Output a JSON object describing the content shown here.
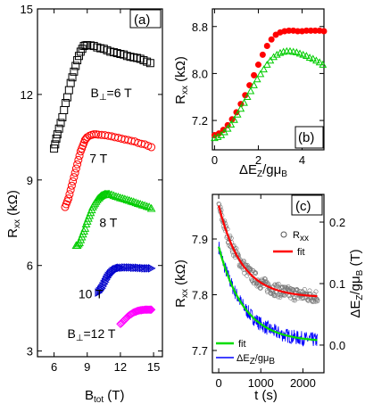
{
  "chart_data": [
    {
      "panel": "a",
      "type": "scatter",
      "panel_label": "(a)",
      "xlabel": "B",
      "xlabel_sub": "tot",
      "xlabel_unit": "(T)",
      "ylabel": "R",
      "ylabel_sub": "xx",
      "ylabel_unit": "(kΩ)",
      "xlim": [
        4.5,
        15.8
      ],
      "ylim": [
        2.8,
        15
      ],
      "xticks": [
        6,
        9,
        12,
        15
      ],
      "yticks": [
        3,
        6,
        9,
        12,
        15
      ],
      "xtick_labels": [
        "6",
        "9",
        "12",
        "15"
      ],
      "ytick_labels": [
        "3",
        "6",
        "9",
        "12",
        "15"
      ],
      "grid": false,
      "series": [
        {
          "name": "B⊥=6 T",
          "marker": "square",
          "color": "#000000",
          "label_main": "B",
          "label_sub": "⊥",
          "label_rest": "=6 T",
          "x": [
            6.0,
            6.1,
            6.2,
            6.3,
            6.45,
            6.6,
            6.75,
            6.9,
            7.05,
            7.2,
            7.35,
            7.5,
            7.65,
            7.8,
            7.95,
            8.1,
            8.25,
            8.4,
            8.55,
            8.7,
            8.85,
            9.0,
            9.3,
            9.6,
            9.9,
            10.2,
            10.5,
            10.8,
            11.1,
            11.4,
            11.7,
            12.0,
            12.3,
            12.6,
            12.9,
            13.2,
            13.5,
            13.8,
            14.1,
            14.4,
            14.7
          ],
          "y": [
            10.1,
            10.25,
            10.45,
            10.6,
            10.8,
            11.0,
            11.2,
            11.45,
            11.7,
            11.9,
            12.15,
            12.4,
            12.6,
            12.8,
            13.0,
            13.2,
            13.35,
            13.5,
            13.6,
            13.7,
            13.72,
            13.73,
            13.72,
            13.7,
            13.65,
            13.62,
            13.6,
            13.55,
            13.5,
            13.48,
            13.45,
            13.42,
            13.4,
            13.35,
            13.32,
            13.3,
            13.28,
            13.25,
            13.2,
            13.15,
            13.1
          ]
        },
        {
          "name": "7 T",
          "marker": "circle",
          "color": "#ff0000",
          "label_main": "7 T",
          "label_sub": "",
          "label_rest": "",
          "x": [
            7.0,
            7.1,
            7.2,
            7.3,
            7.4,
            7.5,
            7.6,
            7.7,
            7.8,
            7.9,
            8.0,
            8.1,
            8.2,
            8.3,
            8.4,
            8.5,
            8.6,
            8.7,
            8.8,
            8.9,
            9.0,
            9.2,
            9.4,
            9.6,
            9.8,
            10.0,
            10.3,
            10.6,
            10.9,
            11.2,
            11.5,
            11.8,
            12.1,
            12.4,
            12.7,
            13.0,
            13.3,
            13.6,
            13.9,
            14.2,
            14.5,
            14.8
          ],
          "y": [
            8.05,
            8.15,
            8.25,
            8.35,
            8.5,
            8.65,
            8.8,
            8.95,
            9.1,
            9.25,
            9.4,
            9.55,
            9.7,
            9.85,
            10.0,
            10.1,
            10.2,
            10.3,
            10.4,
            10.45,
            10.5,
            10.55,
            10.58,
            10.6,
            10.6,
            10.59,
            10.58,
            10.57,
            10.55,
            10.53,
            10.5,
            10.48,
            10.45,
            10.42,
            10.4,
            10.37,
            10.35,
            10.3,
            10.27,
            10.25,
            10.2,
            10.15
          ]
        },
        {
          "name": "8 T",
          "marker": "triangle-up",
          "color": "#00cc00",
          "label_main": "8 T",
          "label_sub": "",
          "label_rest": "",
          "x": [
            8.0,
            8.1,
            8.2,
            8.3,
            8.4,
            8.5,
            8.6,
            8.7,
            8.8,
            8.9,
            9.0,
            9.1,
            9.2,
            9.3,
            9.4,
            9.5,
            9.6,
            9.7,
            9.8,
            9.9,
            10.0,
            10.1,
            10.2,
            10.3,
            10.4,
            10.5,
            10.6,
            10.7,
            10.8,
            10.9,
            11.0,
            11.2,
            11.4,
            11.6,
            11.8,
            12.0,
            12.2,
            12.4,
            12.6,
            12.8,
            13.0,
            13.2,
            13.4,
            13.6,
            13.8,
            14.0,
            14.2,
            14.4,
            14.6,
            14.8
          ],
          "y": [
            6.7,
            6.7,
            6.75,
            6.8,
            6.9,
            7.0,
            7.1,
            7.2,
            7.3,
            7.45,
            7.55,
            7.65,
            7.75,
            7.85,
            7.95,
            8.05,
            8.12,
            8.18,
            8.24,
            8.3,
            8.35,
            8.38,
            8.42,
            8.45,
            8.47,
            8.48,
            8.5,
            8.5,
            8.5,
            8.5,
            8.5,
            8.48,
            8.45,
            8.42,
            8.4,
            8.37,
            8.35,
            8.33,
            8.3,
            8.28,
            8.25,
            8.23,
            8.2,
            8.17,
            8.15,
            8.12,
            8.1,
            8.07,
            8.05,
            8.0
          ]
        },
        {
          "name": "10 T",
          "marker": "triangle-right",
          "color": "#0000cc",
          "label_main": "10 T",
          "label_sub": "",
          "label_rest": "",
          "x": [
            10.0,
            10.1,
            10.2,
            10.3,
            10.4,
            10.5,
            10.6,
            10.7,
            10.8,
            10.9,
            11.0,
            11.1,
            11.2,
            11.3,
            11.4,
            11.5,
            11.6,
            11.7,
            11.8,
            11.9,
            12.0,
            12.2,
            12.4,
            12.6,
            12.8,
            13.0,
            13.2,
            13.4,
            13.6,
            13.8,
            14.0,
            14.2,
            14.4,
            14.6,
            14.8
          ],
          "y": [
            5.05,
            5.1,
            5.15,
            5.2,
            5.27,
            5.35,
            5.42,
            5.5,
            5.57,
            5.63,
            5.68,
            5.72,
            5.76,
            5.8,
            5.82,
            5.85,
            5.87,
            5.88,
            5.9,
            5.91,
            5.92,
            5.92,
            5.93,
            5.93,
            5.93,
            5.93,
            5.92,
            5.92,
            5.92,
            5.91,
            5.91,
            5.9,
            5.9,
            5.9,
            5.9
          ]
        },
        {
          "name": "B⊥=12 T",
          "marker": "diamond",
          "color": "#ff00ff",
          "label_main": "B",
          "label_sub": "⊥",
          "label_rest": "=12 T",
          "x": [
            12.0,
            12.1,
            12.2,
            12.3,
            12.4,
            12.5,
            12.6,
            12.7,
            12.8,
            12.9,
            13.0,
            13.1,
            13.2,
            13.3,
            13.4,
            13.5,
            13.6,
            13.7,
            13.8,
            13.9,
            14.0,
            14.1,
            14.2,
            14.3,
            14.4,
            14.5,
            14.6,
            14.7,
            14.8
          ],
          "y": [
            3.95,
            3.98,
            4.02,
            4.06,
            4.1,
            4.14,
            4.18,
            4.22,
            4.25,
            4.28,
            4.3,
            4.33,
            4.35,
            4.37,
            4.38,
            4.4,
            4.41,
            4.42,
            4.43,
            4.43,
            4.44,
            4.44,
            4.45,
            4.45,
            4.45,
            4.45,
            4.45,
            4.45,
            4.45
          ]
        }
      ]
    },
    {
      "panel": "b",
      "type": "scatter",
      "panel_label": "(b)",
      "xlabel": "ΔE",
      "xlabel_sub": "Z",
      "xlabel_rest": "/gμ",
      "xlabel_sub2": "B",
      "ylabel": "R",
      "ylabel_sub": "xx",
      "ylabel_unit": "(kΩ)",
      "xlim": [
        -0.1,
        5.0
      ],
      "ylim": [
        6.7,
        9.1
      ],
      "xticks": [
        0,
        2,
        4
      ],
      "yticks": [
        7.2,
        8.0,
        8.8
      ],
      "xtick_labels": [
        "0",
        "2",
        "4"
      ],
      "ytick_labels": [
        "7.2",
        "8.0",
        "8.8"
      ],
      "grid": false,
      "series": [
        {
          "marker": "circle-filled",
          "color": "#ff0000",
          "x": [
            0.0,
            0.2,
            0.4,
            0.6,
            0.8,
            1.0,
            1.2,
            1.4,
            1.6,
            1.8,
            2.0,
            2.2,
            2.4,
            2.6,
            2.8,
            3.0,
            3.2,
            3.4,
            3.6,
            3.8,
            4.0,
            4.2,
            4.4,
            4.6,
            4.8,
            5.0
          ],
          "y": [
            6.95,
            6.98,
            7.04,
            7.12,
            7.22,
            7.34,
            7.48,
            7.63,
            7.8,
            7.97,
            8.15,
            8.32,
            8.47,
            8.58,
            8.66,
            8.7,
            8.72,
            8.73,
            8.73,
            8.72,
            8.72,
            8.73,
            8.73,
            8.73,
            8.73,
            8.72
          ]
        },
        {
          "marker": "triangle-up",
          "color": "#00cc00",
          "x": [
            0.0,
            0.15,
            0.3,
            0.45,
            0.6,
            0.75,
            0.9,
            1.05,
            1.2,
            1.35,
            1.5,
            1.65,
            1.8,
            1.95,
            2.1,
            2.25,
            2.4,
            2.55,
            2.7,
            2.85,
            3.0,
            3.15,
            3.3,
            3.45,
            3.6,
            3.75,
            3.9,
            4.05,
            4.2,
            4.35,
            4.5,
            4.65,
            4.8,
            4.95
          ],
          "y": [
            6.9,
            6.92,
            6.95,
            7.0,
            7.06,
            7.13,
            7.21,
            7.3,
            7.4,
            7.5,
            7.6,
            7.7,
            7.8,
            7.9,
            7.99,
            8.07,
            8.15,
            8.22,
            8.28,
            8.32,
            8.35,
            8.37,
            8.38,
            8.38,
            8.37,
            8.36,
            8.34,
            8.32,
            8.3,
            8.27,
            8.25,
            8.22,
            8.19,
            8.15
          ]
        }
      ]
    },
    {
      "panel": "c",
      "type": "scatter",
      "panel_label": "(c)",
      "xlabel": "t (s)",
      "ylabel": "R",
      "ylabel_sub": "xx",
      "ylabel_unit": "(kΩ)",
      "ylabel_right": "ΔE",
      "ylabel_right_sub": "Z",
      "ylabel_right_rest": "/gμ",
      "ylabel_right_sub2": "B",
      "ylabel_right_unit": "(T)",
      "xlim": [
        -150,
        2500
      ],
      "ylim": [
        7.66,
        7.98
      ],
      "ylim_right": [
        -0.045,
        0.245
      ],
      "xticks": [
        0,
        1000,
        2000
      ],
      "yticks": [
        7.7,
        7.8,
        7.9
      ],
      "yticks_right": [
        0.0,
        0.1,
        0.2
      ],
      "xtick_labels": [
        "0",
        "1000",
        "2000"
      ],
      "ytick_labels": [
        "7.7",
        "7.8",
        "7.9"
      ],
      "ytick_labels_right": [
        "0.0",
        "0.1",
        "0.2"
      ],
      "grid": false,
      "legend_upper": [
        {
          "label": "R",
          "label_sub": "xx",
          "style": "marker",
          "color": "#777777"
        },
        {
          "label": "fit",
          "label_sub": "",
          "style": "line",
          "color": "#ff0000"
        }
      ],
      "legend_lower": [
        {
          "label": "fit",
          "label_sub": "",
          "style": "line",
          "color": "#00dd00"
        },
        {
          "label": "ΔE",
          "label_sub": "Z",
          "label_rest": "/gμ",
          "label_sub2": "B",
          "style": "line",
          "color": "#0000ff"
        }
      ],
      "rxx_fit": {
        "model": "exponential",
        "y0": 7.795,
        "amplitude": 0.165,
        "tau": 550,
        "color": "#ff0000"
      },
      "ez_fit": {
        "model": "exponential",
        "y0": 0.005,
        "amplitude": 0.155,
        "tau": 600,
        "color": "#00dd00"
      },
      "rxx_noise": 0.012,
      "ez_noise": 0.012,
      "t_range": [
        0,
        2350
      ]
    }
  ]
}
